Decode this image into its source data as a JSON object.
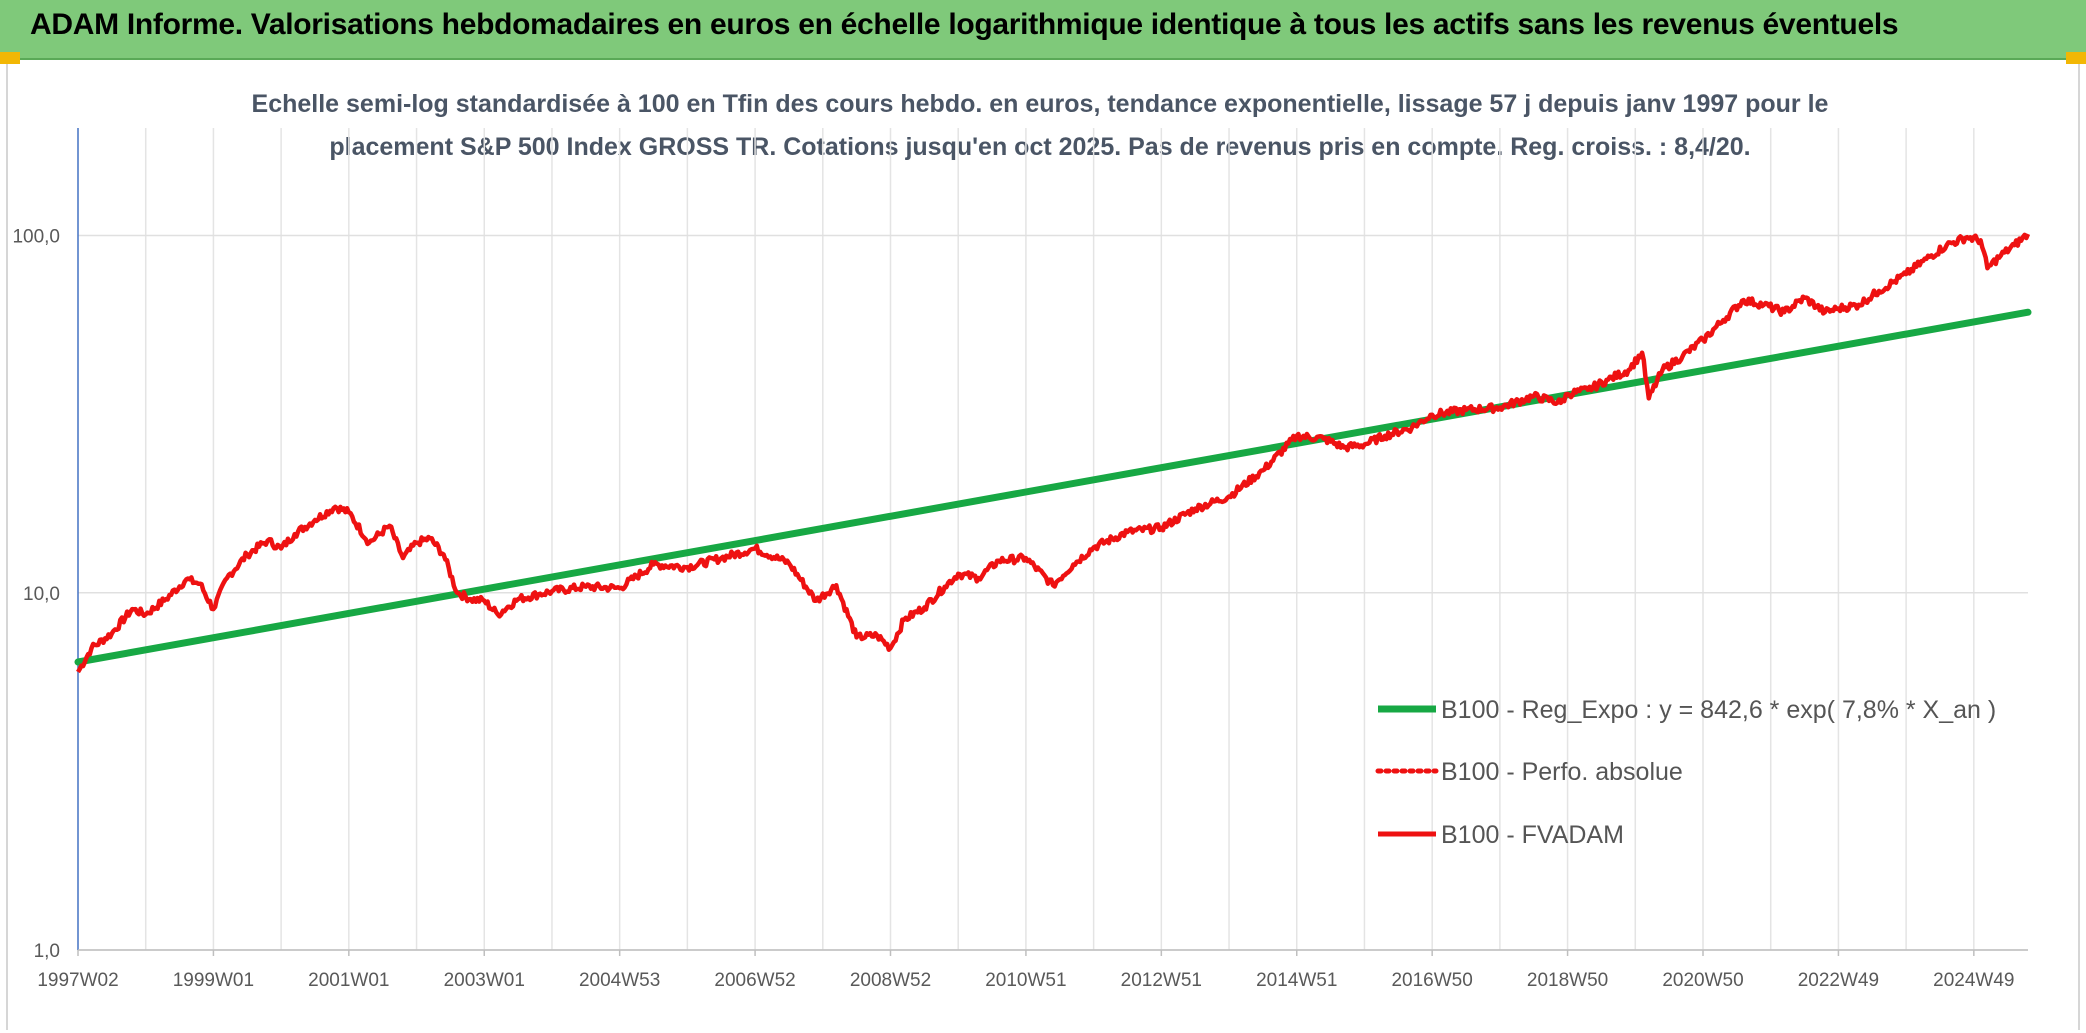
{
  "header": {
    "title": "ADAM Informe. Valorisations hebdomadaires en euros en échelle logarithmique identique à tous les actifs sans les revenus éventuels"
  },
  "colors": {
    "banner": "#7fc97a",
    "regression": "#17a844",
    "fvadam": "#ee1111",
    "corner": "#f2b705"
  },
  "chart_data": {
    "type": "line",
    "title_line1": "Echelle semi-log standardisée à 100 en Tfin des cours hebdo. en euros, tendance exponentielle, lissage 57 j depuis janv 1997 pour le",
    "title_line2": "placement S&P 500 Index GROSS TR. Cotations jusqu'en oct 2025. Pas de revenus pris en compte. Reg. croiss. : 8,4/20.",
    "y_scale": "log",
    "ylim": [
      1,
      200
    ],
    "y_ticks": [
      {
        "value": 1,
        "label": "1,0"
      },
      {
        "value": 10,
        "label": "10,0"
      },
      {
        "value": 100,
        "label": "100,0"
      }
    ],
    "xlim": [
      1997.0,
      2025.8
    ],
    "x_ticks": [
      {
        "x": 1997.0,
        "label": "1997W02"
      },
      {
        "x": 1999.0,
        "label": "1999W01"
      },
      {
        "x": 2001.0,
        "label": "2001W01"
      },
      {
        "x": 2003.0,
        "label": "2003W01"
      },
      {
        "x": 2005.0,
        "label": "2004W53"
      },
      {
        "x": 2007.0,
        "label": "2006W52"
      },
      {
        "x": 2009.0,
        "label": "2008W52"
      },
      {
        "x": 2011.0,
        "label": "2010W51"
      },
      {
        "x": 2013.0,
        "label": "2012W51"
      },
      {
        "x": 2015.0,
        "label": "2014W51"
      },
      {
        "x": 2017.0,
        "label": "2016W50"
      },
      {
        "x": 2019.0,
        "label": "2018W50"
      },
      {
        "x": 2021.0,
        "label": "2020W50"
      },
      {
        "x": 2023.0,
        "label": "2022W49"
      },
      {
        "x": 2025.0,
        "label": "2024W49"
      }
    ],
    "grid": true,
    "legend_position": "bottom-right",
    "series": [
      {
        "name": "B100 - Reg_Expo : y = 842,6 * exp( 7,8% *  X_an )",
        "style": "solid-thick",
        "color": "#17a844",
        "x": [
          1997.0,
          2025.8
        ],
        "values": [
          6.4,
          61.0
        ]
      },
      {
        "name": "B100 - Perfo. absolue",
        "style": "dotted",
        "color": "#ee1111",
        "x": [],
        "values": []
      },
      {
        "name": "B100 - FVADAM",
        "style": "solid",
        "color": "#ee1111",
        "x": [
          1997.0,
          1997.2,
          1997.5,
          1997.8,
          1998.0,
          1998.3,
          1998.6,
          1998.8,
          1999.0,
          1999.2,
          1999.5,
          1999.8,
          2000.0,
          2000.2,
          2000.5,
          2000.8,
          2001.0,
          2001.3,
          2001.6,
          2001.8,
          2002.0,
          2002.2,
          2002.4,
          2002.6,
          2002.8,
          2003.0,
          2003.2,
          2003.5,
          2003.8,
          2004.0,
          2004.5,
          2005.0,
          2005.5,
          2006.0,
          2006.5,
          2007.0,
          2007.5,
          2007.9,
          2008.2,
          2008.5,
          2008.8,
          2009.0,
          2009.2,
          2009.5,
          2009.8,
          2010.0,
          2010.3,
          2010.6,
          2011.0,
          2011.4,
          2011.7,
          2012.0,
          2012.5,
          2013.0,
          2013.5,
          2014.0,
          2014.5,
          2015.0,
          2015.4,
          2015.7,
          2016.0,
          2016.3,
          2016.7,
          2017.0,
          2017.5,
          2018.0,
          2018.5,
          2018.9,
          2019.0,
          2019.3,
          2019.6,
          2019.9,
          2020.1,
          2020.2,
          2020.4,
          2020.7,
          2021.0,
          2021.3,
          2021.6,
          2021.9,
          2022.2,
          2022.5,
          2022.8,
          2023.0,
          2023.3,
          2023.6,
          2024.0,
          2024.3,
          2024.6,
          2024.9,
          2025.1,
          2025.2,
          2025.4,
          2025.6,
          2025.8
        ],
        "values": [
          6.0,
          7.0,
          7.7,
          9.0,
          8.7,
          9.6,
          10.9,
          10.6,
          9.0,
          11.0,
          12.8,
          14.0,
          13.3,
          14.6,
          16.0,
          17.4,
          16.8,
          13.8,
          15.4,
          12.5,
          13.8,
          14.2,
          12.8,
          10.0,
          9.6,
          9.5,
          8.7,
          9.6,
          9.9,
          10.1,
          10.4,
          10.3,
          12.0,
          11.8,
          12.5,
          13.3,
          12.1,
          9.5,
          10.5,
          7.5,
          7.6,
          7.0,
          8.4,
          9.1,
          10.4,
          11.3,
          11.0,
          12.3,
          12.5,
          10.5,
          12.0,
          13.4,
          14.8,
          15.2,
          17.2,
          18.6,
          22.0,
          27.5,
          27.0,
          25.5,
          26.0,
          27.5,
          29.0,
          31.5,
          32.5,
          33.0,
          35.5,
          34.0,
          36.0,
          37.0,
          39.5,
          42.0,
          47.0,
          35.0,
          42.0,
          46.0,
          51.0,
          58.0,
          66.0,
          64.0,
          61.0,
          67.0,
          61.0,
          62.5,
          64.0,
          70.0,
          78.0,
          86.0,
          94.0,
          99.0,
          97.0,
          81.0,
          88.0,
          94.0,
          101.0
        ]
      }
    ]
  }
}
